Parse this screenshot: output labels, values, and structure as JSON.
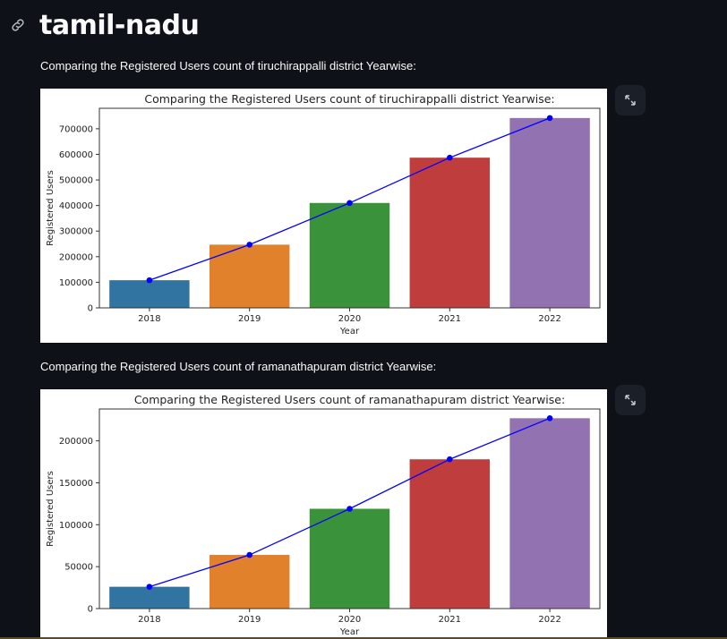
{
  "page": {
    "title": "tamil-nadu"
  },
  "icons": {
    "link": "link-icon",
    "expand": "expand-icon"
  },
  "sections": [
    {
      "caption": "Comparing the Registered Users count of tiruchirappalli district Yearwise:"
    },
    {
      "caption": "Comparing the Registered Users count of ramanathapuram district Yearwise:"
    }
  ],
  "chart_data": [
    {
      "type": "bar",
      "title": "Comparing the Registered Users count of tiruchirappalli district Yearwise:",
      "xlabel": "Year",
      "ylabel": "Registered Users",
      "categories": [
        "2018",
        "2019",
        "2020",
        "2021",
        "2022"
      ],
      "values": [
        108000,
        247000,
        410000,
        587000,
        742000
      ],
      "line_overlay": true,
      "yticks": [
        0,
        100000,
        200000,
        300000,
        400000,
        500000,
        600000,
        700000
      ],
      "ylim": [
        0,
        780000
      ],
      "bar_colors": [
        "#3274a1",
        "#e1812c",
        "#3a923a",
        "#c03d3e",
        "#9372b2"
      ],
      "line_color": "#0000ff"
    },
    {
      "type": "bar",
      "title": "Comparing the Registered Users count of ramanathapuram district Yearwise:",
      "xlabel": "Year",
      "ylabel": "Registered Users",
      "categories": [
        "2018",
        "2019",
        "2020",
        "2021",
        "2022"
      ],
      "values": [
        26000,
        64000,
        119000,
        178000,
        227000
      ],
      "line_overlay": true,
      "yticks": [
        0,
        50000,
        100000,
        150000,
        200000
      ],
      "ylim": [
        0,
        238000
      ],
      "bar_colors": [
        "#3274a1",
        "#e1812c",
        "#3a923a",
        "#c03d3e",
        "#9372b2"
      ],
      "line_color": "#0000ff"
    }
  ]
}
